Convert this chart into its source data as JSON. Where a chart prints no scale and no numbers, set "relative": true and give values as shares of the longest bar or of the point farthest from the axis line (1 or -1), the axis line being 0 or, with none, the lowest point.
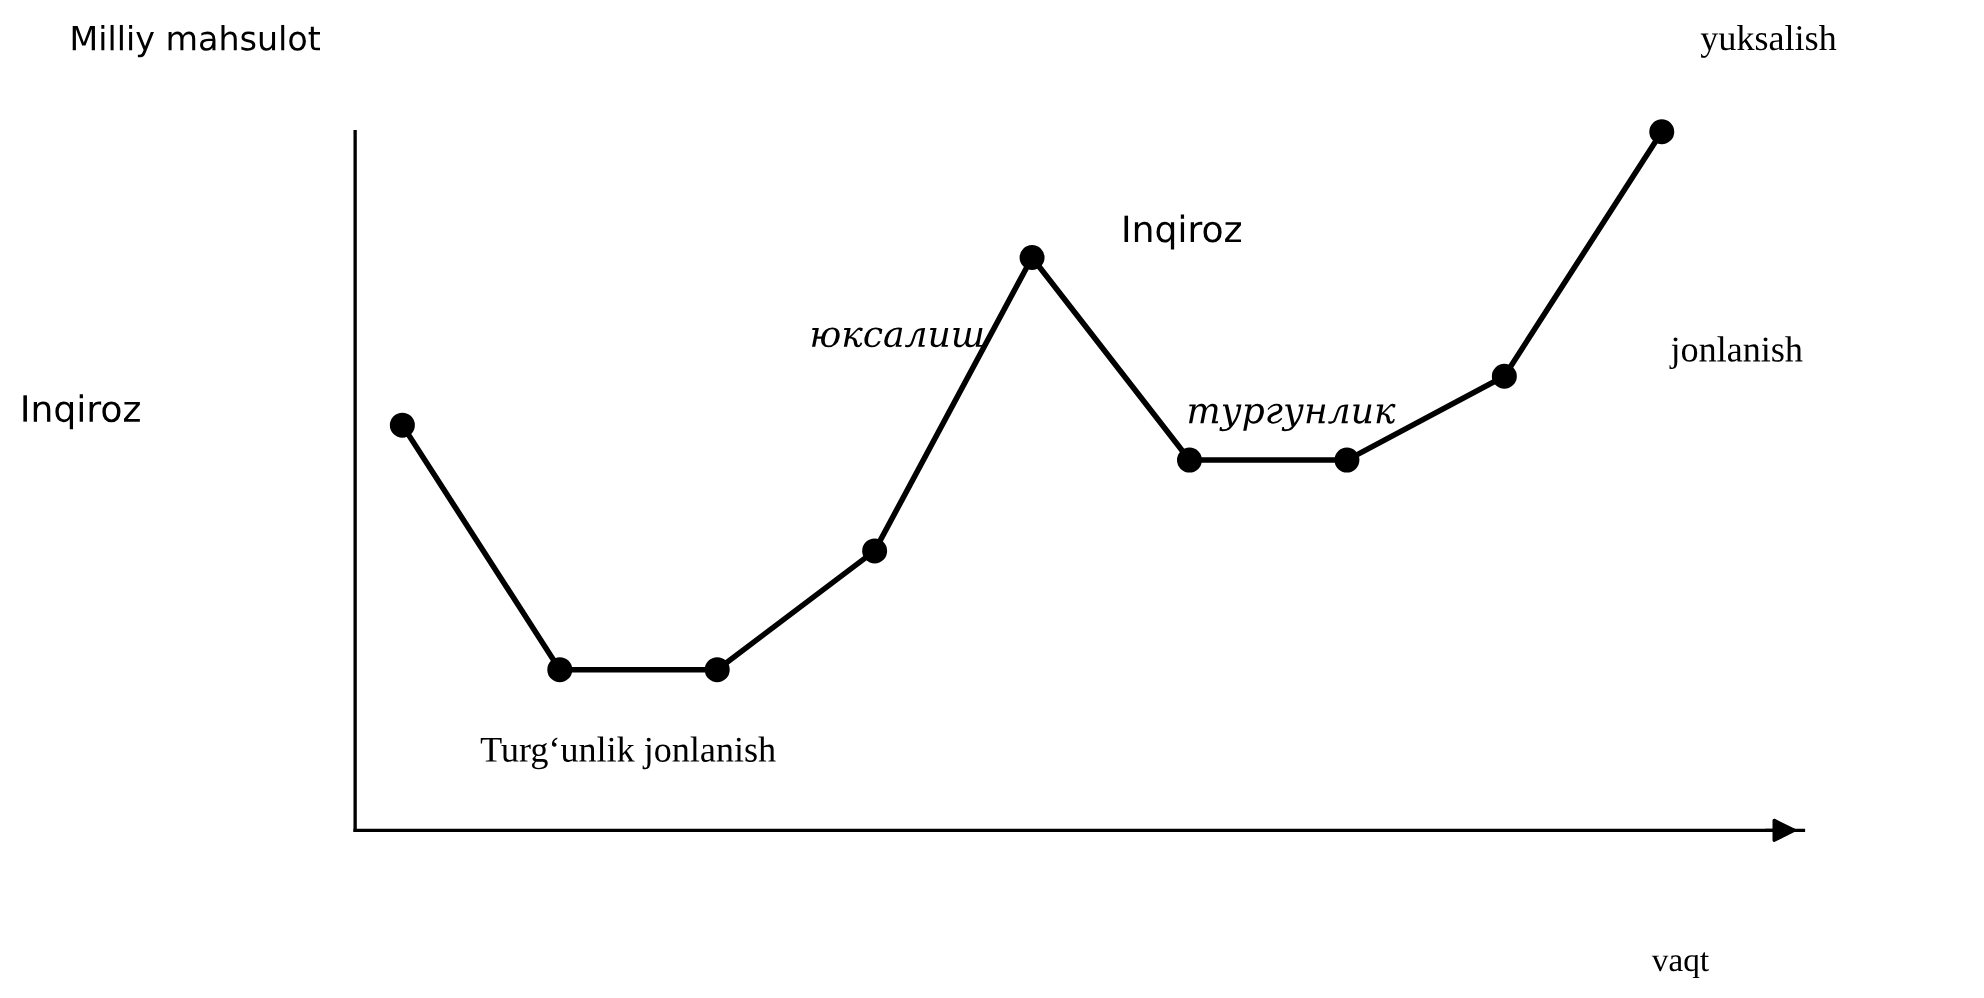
{
  "chart_data": {
    "type": "line",
    "relative": true,
    "ylabel": "Milliy mahsulot",
    "xlabel": "vaqt",
    "categories": [
      null,
      null,
      null,
      null,
      null,
      null,
      null,
      null,
      null
    ],
    "series": [
      {
        "color": "#000000",
        "values": [
          0.58,
          0.23,
          0.23,
          0.4,
          0.82,
          0.53,
          0.53,
          0.65,
          1
        ]
      }
    ],
    "annotations": [
      "Inqiroz",
      "юксалиш",
      "Inqiroz",
      "тургунлик",
      "jonlanish",
      "yuksalish",
      "Turg‘unlik jonlanish"
    ],
    "marker": "circle",
    "grid": false,
    "legend": false
  }
}
